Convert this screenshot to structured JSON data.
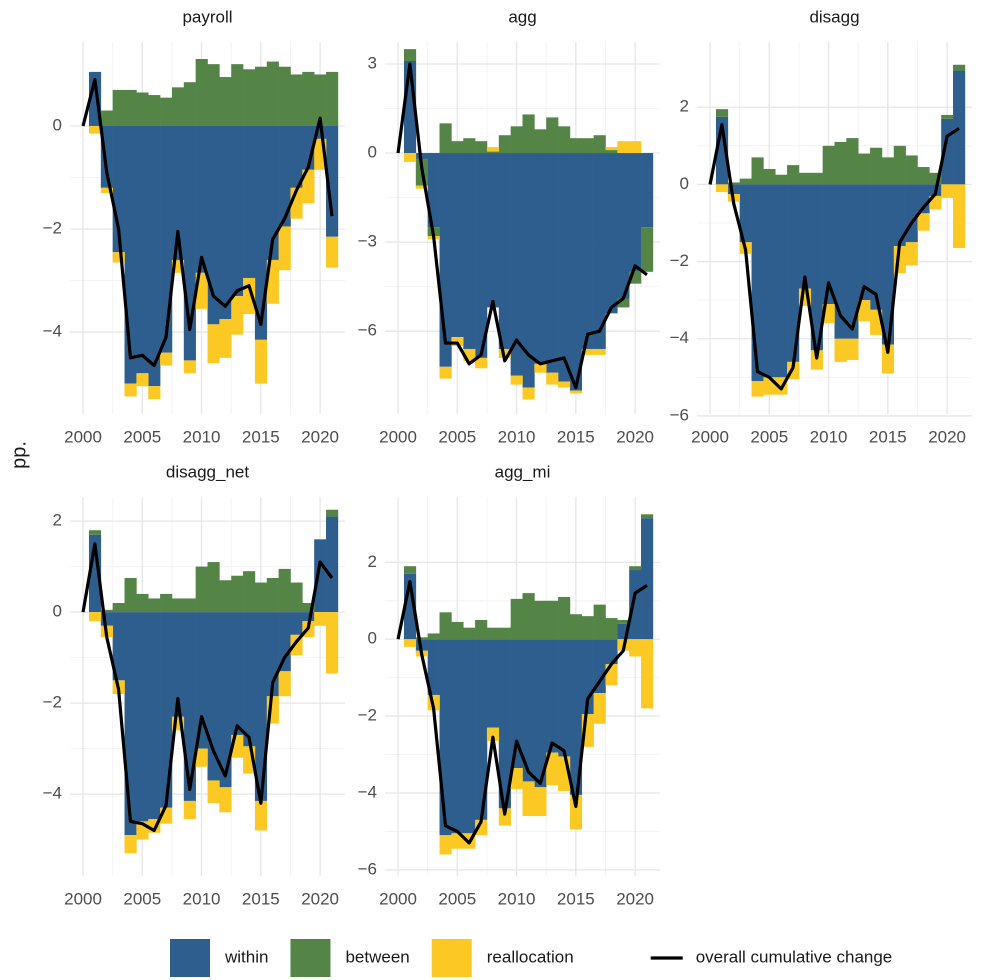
{
  "chart_data": [
    {
      "type": "bar",
      "title": "payroll",
      "y_label": "pp.",
      "legend": "bottom",
      "x": [
        2000,
        2001,
        2002,
        2003,
        2004,
        2005,
        2006,
        2007,
        2008,
        2009,
        2010,
        2011,
        2012,
        2013,
        2014,
        2015,
        2016,
        2017,
        2018,
        2019,
        2020,
        2021
      ],
      "xlim": [
        1998.9,
        2022.1
      ],
      "xticks": [
        2000,
        2005,
        2010,
        2015,
        2020
      ],
      "ylim": [
        -5.59,
        1.63
      ],
      "yticks": [
        {
          "value": -4,
          "label": "−4"
        },
        {
          "value": -2,
          "label": "−2"
        },
        0
      ],
      "grid": true,
      "series": [
        {
          "name": "within",
          "color": "#2e5e8e",
          "values": [
            null,
            1.05,
            -1.2,
            -2.45,
            -5.0,
            -4.8,
            -5.05,
            -4.4,
            -2.6,
            -4.55,
            -2.85,
            -3.85,
            -3.75,
            -3.3,
            -2.95,
            -4.15,
            -2.6,
            -1.95,
            -1.2,
            -0.85,
            -0.25,
            -2.15
          ]
        },
        {
          "name": "between",
          "color": "#548546",
          "values": [
            null,
            0,
            0.3,
            0.7,
            0.7,
            0.65,
            0.6,
            0.55,
            0.75,
            0.85,
            1.3,
            1.2,
            0.95,
            1.2,
            1.1,
            1.15,
            1.25,
            1.15,
            1.0,
            1.05,
            1.0,
            1.05
          ]
        },
        {
          "name": "reallocation",
          "color": "#fcc924",
          "values": [
            null,
            -0.15,
            -0.1,
            -0.2,
            -0.25,
            -0.25,
            -0.25,
            -0.25,
            -0.25,
            -0.25,
            -0.7,
            -0.75,
            -0.75,
            -0.75,
            -0.7,
            -0.85,
            -0.85,
            -0.85,
            -0.6,
            -0.65,
            -0.6,
            -0.6
          ]
        },
        {
          "name": "overall cumulative change",
          "color": "#000000",
          "kind": "line",
          "values": [
            0,
            0.9,
            -0.9,
            -2.0,
            -4.5,
            -4.45,
            -4.65,
            -4.1,
            -2.05,
            -3.95,
            -2.55,
            -3.3,
            -3.5,
            -3.2,
            -3.1,
            -3.85,
            -2.2,
            -1.8,
            -1.25,
            -0.8,
            0.15,
            -1.75
          ]
        }
      ]
    },
    {
      "type": "bar",
      "title": "agg",
      "x": [
        2000,
        2001,
        2002,
        2003,
        2004,
        2005,
        2006,
        2007,
        2008,
        2009,
        2010,
        2011,
        2012,
        2013,
        2014,
        2015,
        2016,
        2017,
        2018,
        2019,
        2020,
        2021
      ],
      "xlim": [
        1998.9,
        2022.1
      ],
      "xticks": [
        2000,
        2005,
        2010,
        2015,
        2020
      ],
      "ylim": [
        -8.79,
        3.74
      ],
      "yticks": [
        {
          "value": -6,
          "label": "−6"
        },
        {
          "value": -3,
          "label": "−3"
        },
        0,
        3
      ],
      "grid": true,
      "series": [
        {
          "name": "within",
          "color": "#2e5e8e",
          "values": [
            null,
            3.1,
            -0.2,
            -2.5,
            -7.2,
            -6.2,
            -6.6,
            -6.9,
            -5.2,
            -6.6,
            -7.5,
            -7.9,
            -7.1,
            -7.4,
            -7.7,
            -8.0,
            -6.6,
            -6.6,
            -5.4,
            -4.9,
            -4.0,
            -2.5
          ]
        },
        {
          "name": "between",
          "color": "#548546",
          "values": [
            null,
            0.4,
            -0.9,
            -0.3,
            1.0,
            0.4,
            0.5,
            0.4,
            0.05,
            0.6,
            0.9,
            1.3,
            0.8,
            1.2,
            0.9,
            0.5,
            0.5,
            0.6,
            0.1,
            -0.3,
            -0.4,
            -1.5
          ]
        },
        {
          "name": "reallocation",
          "color": "#fcc924",
          "values": [
            null,
            -0.3,
            -0.1,
            -0.1,
            -0.4,
            -0.3,
            -0.4,
            -0.35,
            0.15,
            -0.3,
            -0.3,
            -0.4,
            -0.3,
            -0.4,
            -0.2,
            -0.1,
            -0.2,
            -0.2,
            0.1,
            0.4,
            0.4,
            0
          ]
        },
        {
          "name": "overall cumulative change",
          "color": "#000000",
          "kind": "line",
          "values": [
            0,
            3.0,
            -0.5,
            -2.8,
            -6.4,
            -6.4,
            -7.1,
            -6.8,
            -5.0,
            -7.0,
            -6.3,
            -6.8,
            -7.1,
            -7.0,
            -6.9,
            -7.9,
            -6.1,
            -6.0,
            -5.2,
            -4.9,
            -3.8,
            -4.1
          ]
        }
      ]
    },
    {
      "type": "bar",
      "title": "disagg",
      "x": [
        2000,
        2001,
        2002,
        2003,
        2004,
        2005,
        2006,
        2007,
        2008,
        2009,
        2010,
        2011,
        2012,
        2013,
        2014,
        2015,
        2016,
        2017,
        2018,
        2019,
        2020,
        2021
      ],
      "xlim": [
        1998.9,
        2022.1
      ],
      "xticks": [
        2000,
        2005,
        2010,
        2015,
        2020
      ],
      "ylim": [
        -5.95,
        3.69
      ],
      "yticks": [
        {
          "value": -6,
          "label": "−6"
        },
        {
          "value": -4,
          "label": "−4"
        },
        {
          "value": -2,
          "label": "−2"
        },
        0,
        2
      ],
      "grid": true,
      "series": [
        {
          "name": "within",
          "color": "#2e5e8e",
          "values": [
            null,
            1.75,
            -0.25,
            -1.5,
            -5.1,
            -5.0,
            -5.0,
            -4.6,
            -2.7,
            -4.3,
            -3.1,
            -4.0,
            -4.0,
            -3.0,
            -3.25,
            -4.15,
            -1.6,
            -1.5,
            -0.75,
            -0.3,
            1.7,
            2.95
          ]
        },
        {
          "name": "between",
          "color": "#548546",
          "values": [
            null,
            0.2,
            0.05,
            0.15,
            0.7,
            0.4,
            0.25,
            0.5,
            0.3,
            0.3,
            1.0,
            1.1,
            1.2,
            0.8,
            0.95,
            0.7,
            1.0,
            0.75,
            0.45,
            0.3,
            0.1,
            0.15
          ]
        },
        {
          "name": "reallocation",
          "color": "#fcc924",
          "values": [
            null,
            -0.2,
            -0.2,
            -0.3,
            -0.4,
            -0.45,
            -0.45,
            -0.45,
            -0.45,
            -0.5,
            -0.5,
            -0.6,
            -0.55,
            -0.55,
            -0.65,
            -0.75,
            -0.7,
            -0.6,
            -0.45,
            -0.35,
            -0.35,
            -1.65
          ]
        },
        {
          "name": "overall cumulative change",
          "color": "#000000",
          "kind": "line",
          "values": [
            0,
            1.55,
            -0.5,
            -1.7,
            -4.85,
            -5.0,
            -5.3,
            -4.75,
            -2.4,
            -4.5,
            -2.55,
            -3.4,
            -3.75,
            -2.65,
            -2.85,
            -4.35,
            -1.5,
            -1.0,
            -0.6,
            -0.25,
            1.25,
            1.45
          ]
        }
      ]
    },
    {
      "type": "bar",
      "title": "disagg_net",
      "x": [
        2000,
        2001,
        2002,
        2003,
        2004,
        2005,
        2006,
        2007,
        2008,
        2009,
        2010,
        2011,
        2012,
        2013,
        2014,
        2015,
        2016,
        2017,
        2018,
        2019,
        2020,
        2021
      ],
      "xlim": [
        1998.9,
        2022.1
      ],
      "xticks": [
        2000,
        2005,
        2010,
        2015,
        2020
      ],
      "ylim": [
        -5.8,
        2.53
      ],
      "yticks": [
        {
          "value": -4,
          "label": "−4"
        },
        {
          "value": -2,
          "label": "−2"
        },
        0,
        2
      ],
      "grid": true,
      "series": [
        {
          "name": "within",
          "color": "#2e5e8e",
          "values": [
            null,
            1.7,
            -0.3,
            -1.5,
            -4.9,
            -4.6,
            -4.55,
            -4.3,
            -2.3,
            -4.15,
            -3.0,
            -3.7,
            -3.85,
            -2.7,
            -2.95,
            -4.15,
            -1.85,
            -1.3,
            -0.5,
            -0.2,
            1.6,
            2.1
          ]
        },
        {
          "name": "between",
          "color": "#548546",
          "values": [
            null,
            0.1,
            0.05,
            0.2,
            0.75,
            0.4,
            0.3,
            0.4,
            0.3,
            0.3,
            1.0,
            1.1,
            0.7,
            0.8,
            0.9,
            0.65,
            0.75,
            0.95,
            0.65,
            0.2,
            0,
            0.15
          ]
        },
        {
          "name": "reallocation",
          "color": "#fcc924",
          "values": [
            null,
            -0.2,
            -0.25,
            -0.3,
            -0.4,
            -0.4,
            -0.3,
            -0.35,
            -0.3,
            -0.4,
            -0.4,
            -0.5,
            -0.55,
            -0.5,
            -0.6,
            -0.65,
            -0.6,
            -0.55,
            -0.45,
            -0.35,
            -0.3,
            -1.35
          ]
        },
        {
          "name": "overall cumulative change",
          "color": "#000000",
          "kind": "line",
          "values": [
            0,
            1.5,
            -0.55,
            -1.7,
            -4.6,
            -4.65,
            -4.8,
            -4.25,
            -1.9,
            -3.9,
            -2.3,
            -3.05,
            -3.6,
            -2.5,
            -2.75,
            -4.2,
            -1.55,
            -1.0,
            -0.65,
            -0.35,
            1.1,
            0.75
          ]
        }
      ]
    },
    {
      "type": "bar",
      "title": "agg_mi",
      "x": [
        2000,
        2001,
        2002,
        2003,
        2004,
        2005,
        2006,
        2007,
        2008,
        2009,
        2010,
        2011,
        2012,
        2013,
        2014,
        2015,
        2016,
        2017,
        2018,
        2019,
        2020,
        2021
      ],
      "xlim": [
        1998.9,
        2022.1
      ],
      "xticks": [
        2000,
        2005,
        2010,
        2015,
        2020
      ],
      "ylim": [
        -6.16,
        3.7
      ],
      "yticks": [
        {
          "value": -6,
          "label": "−6"
        },
        {
          "value": -4,
          "label": "−4"
        },
        {
          "value": -2,
          "label": "−2"
        },
        0,
        2
      ],
      "grid": true,
      "series": [
        {
          "name": "within",
          "color": "#2e5e8e",
          "values": [
            null,
            1.7,
            -0.3,
            -1.45,
            -5.1,
            -5.05,
            -5.05,
            -4.7,
            -2.3,
            -4.4,
            -3.35,
            -3.7,
            -3.85,
            -2.95,
            -3.05,
            -4.05,
            -1.95,
            -1.4,
            -0.65,
            0.4,
            1.8,
            3.15
          ]
        },
        {
          "name": "between",
          "color": "#548546",
          "values": [
            null,
            0.2,
            0.05,
            0.15,
            0.7,
            0.45,
            0.3,
            0.5,
            0.3,
            0.3,
            1.05,
            1.2,
            1.0,
            1.0,
            1.1,
            0.65,
            0.6,
            0.9,
            0.55,
            0.1,
            0.1,
            0.1
          ]
        },
        {
          "name": "reallocation",
          "color": "#fcc924",
          "values": [
            null,
            -0.2,
            -0.15,
            -0.4,
            -0.5,
            -0.4,
            -0.4,
            -0.4,
            -0.35,
            -0.45,
            -0.55,
            -0.9,
            -0.75,
            -0.85,
            -0.9,
            -0.9,
            -0.85,
            -0.8,
            -0.55,
            -0.3,
            -0.45,
            -1.8
          ]
        },
        {
          "name": "overall cumulative change",
          "color": "#000000",
          "kind": "line",
          "values": [
            0,
            1.5,
            -0.4,
            -1.8,
            -4.85,
            -5.0,
            -5.3,
            -4.75,
            -2.55,
            -4.55,
            -2.65,
            -3.45,
            -3.75,
            -2.7,
            -2.9,
            -4.35,
            -1.55,
            -1.1,
            -0.65,
            -0.3,
            1.2,
            1.4
          ]
        }
      ]
    }
  ]
}
